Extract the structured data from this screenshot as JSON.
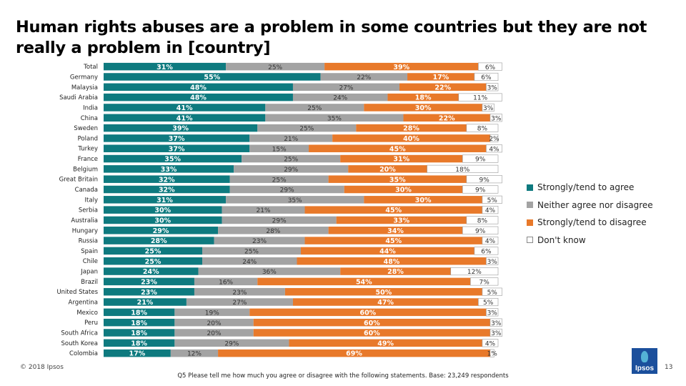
{
  "title": "Human rights abuses are a problem in some countries but they are not really a problem in [country]",
  "legend": [
    {
      "label": "Strongly/tend to agree",
      "color": "#0e7a7f"
    },
    {
      "label": "Neither agree nor disagree",
      "color": "#a3a3a3"
    },
    {
      "label": "Strongly/tend to disagree",
      "color": "#e8792a"
    },
    {
      "label": "Don't know",
      "color": "#ffffff"
    }
  ],
  "footer": {
    "copyright": "© 2018 Ipsos",
    "footnote": "Q5 Please tell me how much you agree or disagree with the following statements. Base: 23,249 respondents",
    "page_number": "13",
    "logo_text": "Ipsos"
  },
  "chart_data": {
    "type": "bar",
    "orientation": "horizontal",
    "stacked": true,
    "categories": [
      "Total",
      "Germany",
      "Malaysia",
      "Saudi Arabia",
      "India",
      "China",
      "Sweden",
      "Poland",
      "Turkey",
      "France",
      "Belgium",
      "Great Britain",
      "Canada",
      "Italy",
      "Serbia",
      "Australia",
      "Hungary",
      "Russia",
      "Spain",
      "Chile",
      "Japan",
      "Brazil",
      "United States",
      "Argentina",
      "Mexico",
      "Peru",
      "South Africa",
      "South Korea",
      "Colombia"
    ],
    "series": [
      {
        "name": "Strongly/tend to agree",
        "color": "#0e7a7f",
        "label_color": "#ffffff",
        "values": [
          31,
          55,
          48,
          48,
          41,
          41,
          39,
          37,
          37,
          35,
          33,
          32,
          32,
          31,
          30,
          30,
          29,
          28,
          25,
          25,
          24,
          23,
          23,
          21,
          18,
          18,
          18,
          18,
          17
        ]
      },
      {
        "name": "Neither agree nor disagree",
        "color": "#a3a3a3",
        "label_color": "#333333",
        "values": [
          25,
          22,
          27,
          24,
          25,
          35,
          25,
          21,
          15,
          25,
          29,
          25,
          29,
          35,
          21,
          29,
          28,
          23,
          25,
          24,
          36,
          16,
          23,
          27,
          19,
          20,
          20,
          29,
          12
        ]
      },
      {
        "name": "Strongly/tend to disagree",
        "color": "#e8792a",
        "label_color": "#ffffff",
        "values": [
          39,
          17,
          22,
          18,
          30,
          22,
          28,
          40,
          45,
          31,
          20,
          35,
          30,
          30,
          45,
          33,
          34,
          45,
          44,
          48,
          28,
          54,
          50,
          47,
          60,
          60,
          60,
          49,
          69
        ]
      },
      {
        "name": "Don't know",
        "color": "#ffffff",
        "label_color": "#333333",
        "values": [
          6,
          6,
          3,
          11,
          3,
          3,
          8,
          2,
          4,
          9,
          18,
          9,
          9,
          5,
          4,
          8,
          9,
          4,
          6,
          3,
          12,
          7,
          5,
          5,
          3,
          3,
          3,
          4,
          1
        ]
      }
    ],
    "value_suffix": "%",
    "xlim": [
      0,
      100
    ]
  }
}
